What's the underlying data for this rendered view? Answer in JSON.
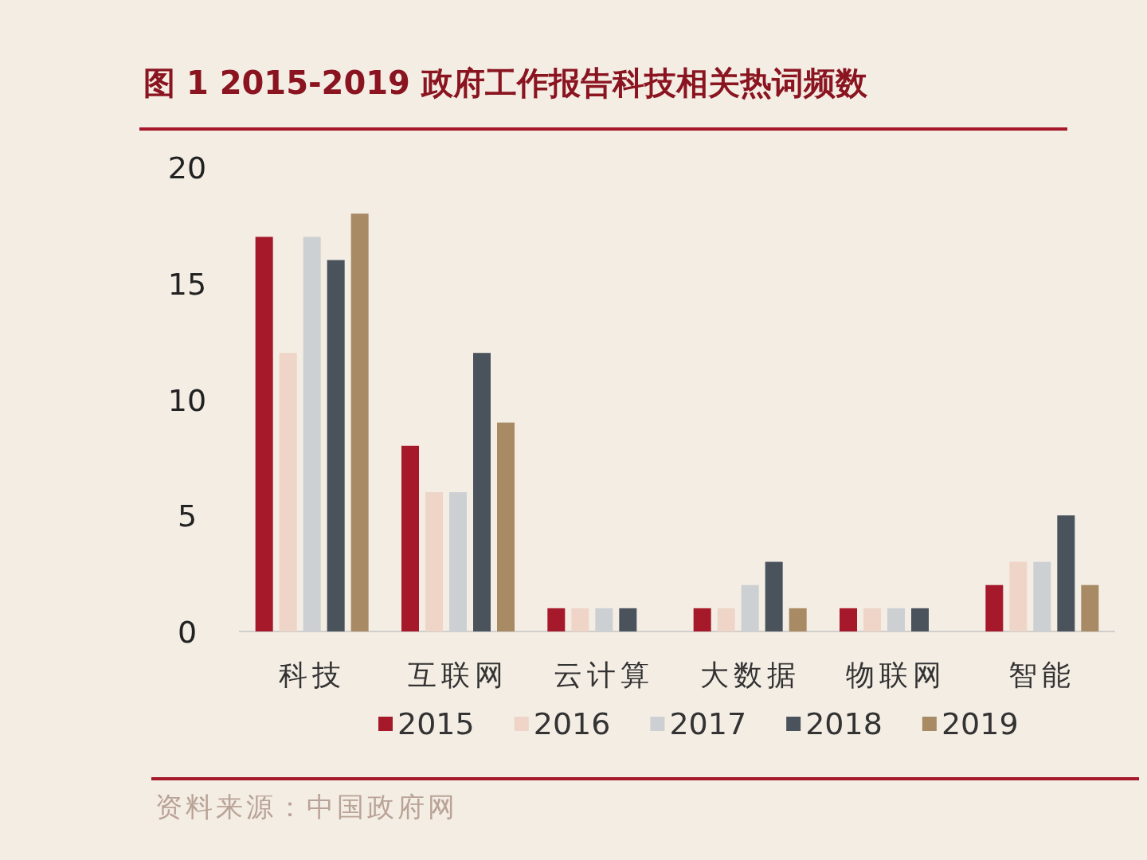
{
  "chart_data": {
    "type": "bar",
    "title": "图 1   2015-2019 政府工作报告科技相关热词频数",
    "categories": [
      "科技",
      "互联网",
      "云计算",
      "大数据",
      "物联网",
      "智能"
    ],
    "series": [
      {
        "name": "2015",
        "color": "#a5192a",
        "values": [
          17,
          8,
          1,
          1,
          1,
          2
        ]
      },
      {
        "name": "2016",
        "color": "#efd4c8",
        "values": [
          12,
          6,
          1,
          1,
          1,
          3
        ]
      },
      {
        "name": "2017",
        "color": "#cdd0d3",
        "values": [
          17,
          6,
          1,
          2,
          1,
          3
        ]
      },
      {
        "name": "2018",
        "color": "#4a525c",
        "values": [
          16,
          12,
          1,
          3,
          1,
          5
        ]
      },
      {
        "name": "2019",
        "color": "#a88a64",
        "values": [
          18,
          9,
          0,
          1,
          0,
          2
        ]
      }
    ],
    "ylim": [
      0,
      20
    ],
    "yticks": [
      0,
      5,
      10,
      15,
      20
    ],
    "legend": "bottom",
    "annotations": [
      "资料来源：中国政府网"
    ]
  }
}
